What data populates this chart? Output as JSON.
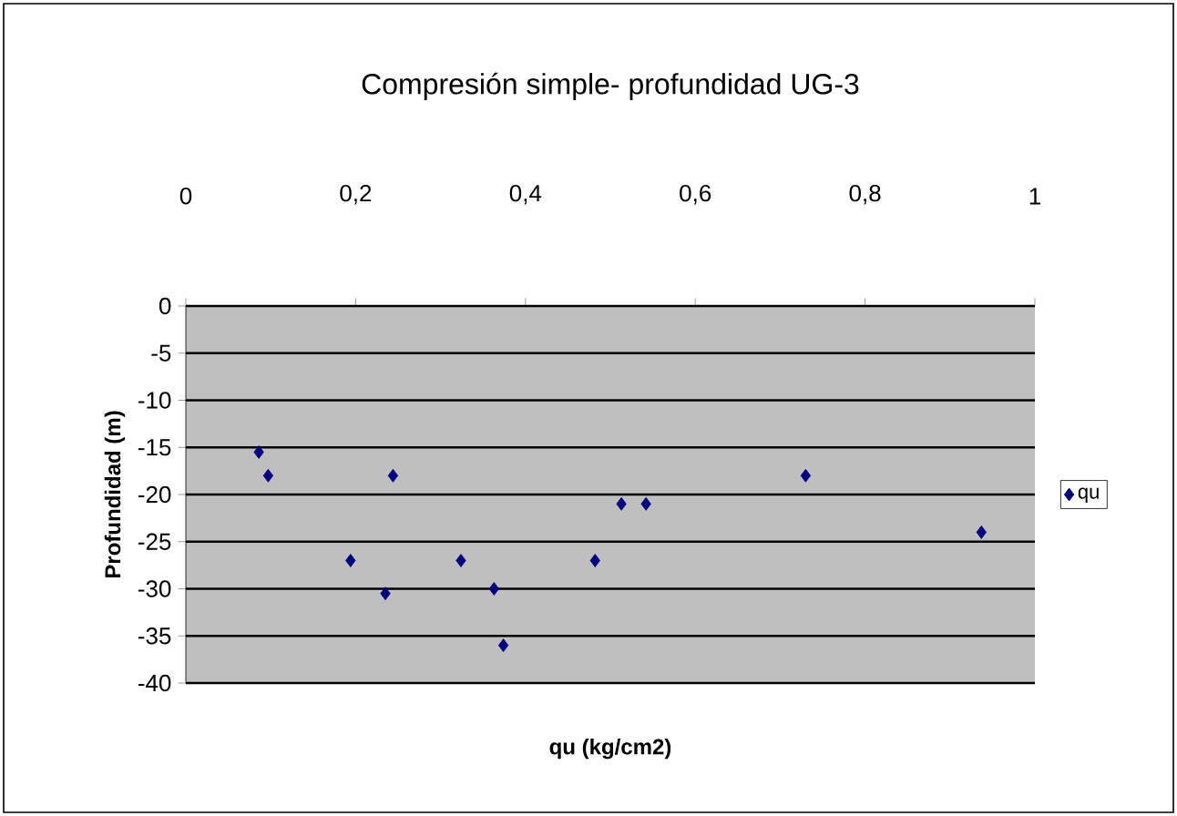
{
  "chart_data": {
    "type": "scatter",
    "title": "Compresión simple- profundidad UG-3",
    "xlabel": "qu (kg/cm2)",
    "ylabel": "Profundidad (m)",
    "xlim": [
      0,
      1
    ],
    "xticks": [
      0,
      {
        "value": 0.2,
        "label": "0,2"
      },
      {
        "value": 0.4,
        "label": "0,4"
      },
      {
        "value": 0.6,
        "label": "0,6"
      },
      {
        "value": 0.8,
        "label": "0,8"
      },
      1
    ],
    "ylim": [
      -40,
      0
    ],
    "yticks": [
      -40,
      -35,
      -30,
      -25,
      -20,
      -15,
      -10,
      -5,
      0
    ],
    "grid": "y",
    "legend": "right",
    "marker": "diamond",
    "series": [
      {
        "name": "qu",
        "color": "#000080",
        "x": [
          0.086,
          0.097,
          0.194,
          0.235,
          0.244,
          0.324,
          0.363,
          0.374,
          0.482,
          0.513,
          0.542,
          0.73,
          0.937
        ],
        "values": [
          -15.5,
          -18,
          -27,
          -30.5,
          -18,
          -27,
          -30,
          -36,
          -27,
          -21,
          -21,
          -18,
          -24
        ]
      }
    ]
  }
}
